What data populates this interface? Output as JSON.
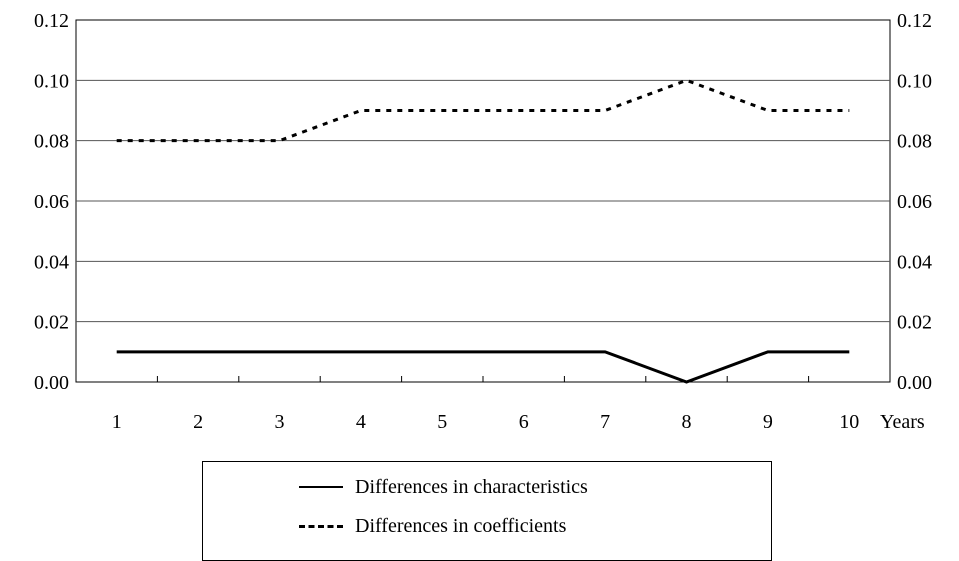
{
  "chart_data": {
    "type": "line",
    "categories": [
      "1",
      "2",
      "3",
      "4",
      "5",
      "6",
      "7",
      "8",
      "9",
      "10"
    ],
    "x_unit_label": "Years",
    "series": [
      {
        "name": "Differences in characteristics",
        "style": "solid",
        "color": "#000000",
        "values": [
          0.01,
          0.01,
          0.01,
          0.01,
          0.01,
          0.01,
          0.01,
          0.0,
          0.01,
          0.01
        ]
      },
      {
        "name": "Differences in coefficients",
        "style": "dotted",
        "color": "#000000",
        "values": [
          0.08,
          0.08,
          0.08,
          0.09,
          0.09,
          0.09,
          0.09,
          0.1,
          0.09,
          0.09
        ]
      }
    ],
    "y_ticks": [
      "0.00",
      "0.02",
      "0.04",
      "0.06",
      "0.08",
      "0.10",
      "0.12"
    ],
    "ylim": [
      0,
      0.12
    ],
    "y_axis_duplicated_right": true,
    "grid": "horizontal",
    "legend_placement": "bottom-center, boxed"
  }
}
